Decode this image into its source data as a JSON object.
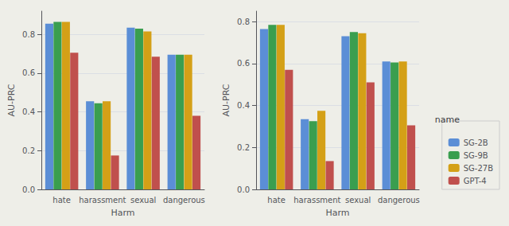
{
  "chart_data": [
    {
      "type": "bar",
      "categories": [
        "hate",
        "harassment",
        "sexual",
        "dangerous"
      ],
      "series": [
        {
          "name": "SG-2B",
          "color": "#5B8ED6",
          "values": [
            0.855,
            0.455,
            0.835,
            0.695
          ]
        },
        {
          "name": "SG-9B",
          "color": "#3A9E4F",
          "values": [
            0.865,
            0.445,
            0.83,
            0.695
          ]
        },
        {
          "name": "SG-27B",
          "color": "#D4A017",
          "values": [
            0.865,
            0.455,
            0.815,
            0.695
          ]
        },
        {
          "name": "GPT-4",
          "color": "#C0504D",
          "values": [
            0.705,
            0.175,
            0.685,
            0.38
          ]
        }
      ],
      "xlabel": "Harm",
      "ylabel": "AU-PRC",
      "ylim": [
        0.0,
        0.92
      ],
      "yticks": [
        {
          "value": 0,
          "label": "0.0"
        },
        0.2,
        0.4,
        0.6,
        0.8
      ],
      "grid": true
    },
    {
      "type": "bar",
      "categories": [
        "hate",
        "harassment",
        "sexual",
        "dangerous"
      ],
      "series": [
        {
          "name": "SG-2B",
          "color": "#5B8ED6",
          "values": [
            0.765,
            0.335,
            0.73,
            0.61
          ]
        },
        {
          "name": "SG-9B",
          "color": "#3A9E4F",
          "values": [
            0.785,
            0.325,
            0.75,
            0.605
          ]
        },
        {
          "name": "SG-27B",
          "color": "#D4A017",
          "values": [
            0.785,
            0.375,
            0.745,
            0.61
          ]
        },
        {
          "name": "GPT-4",
          "color": "#C0504D",
          "values": [
            0.57,
            0.135,
            0.51,
            0.305
          ]
        }
      ],
      "xlabel": "Harm",
      "ylabel": "AU-PRC",
      "ylim": [
        0.0,
        0.85
      ],
      "yticks": [
        {
          "value": 0,
          "label": "0.0"
        },
        0.2,
        0.4,
        0.6,
        0.8
      ],
      "grid": true,
      "legend": "lower right",
      "legend_title": "name"
    }
  ]
}
